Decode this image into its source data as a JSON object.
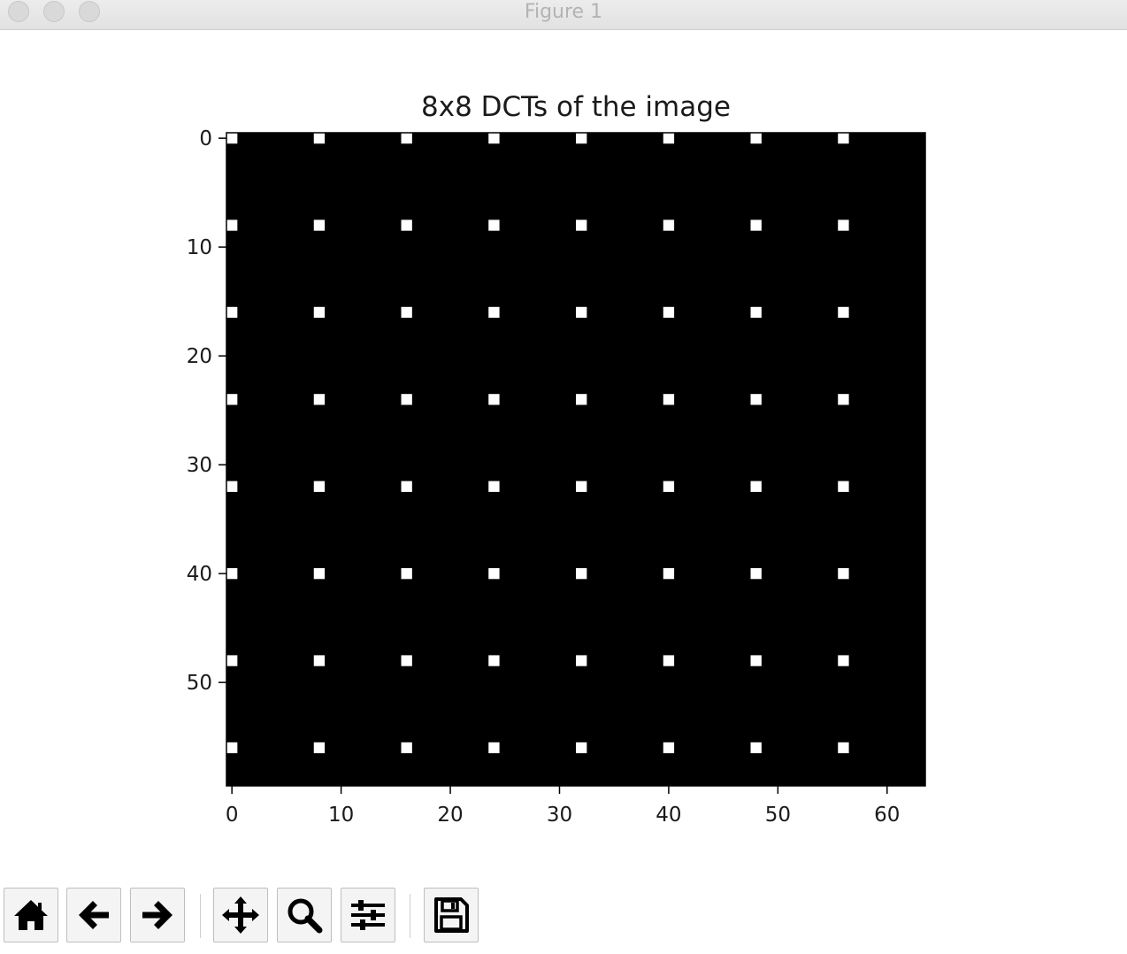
{
  "window": {
    "title": "Figure 1"
  },
  "toolbar": {
    "buttons": [
      {
        "name": "home-icon",
        "label": "home"
      },
      {
        "name": "back-arrow-icon",
        "label": "back"
      },
      {
        "name": "forward-arrow-icon",
        "label": "forward"
      },
      {
        "name": "pan-icon",
        "label": "pan"
      },
      {
        "name": "zoom-icon",
        "label": "zoom"
      },
      {
        "name": "subplots-config-icon",
        "label": "configure subplots"
      },
      {
        "name": "save-icon",
        "label": "save"
      }
    ]
  },
  "chart_data": {
    "type": "heatmap",
    "title": "8x8 DCTs of the image",
    "xlabel": "",
    "ylabel": "",
    "xlim": [
      -0.5,
      63.5
    ],
    "ylim": [
      59.5,
      -0.5
    ],
    "y_inverted": true,
    "colormap": "gray",
    "background_value": 0,
    "x_ticks": [
      0,
      10,
      20,
      30,
      40,
      50,
      60
    ],
    "y_ticks": [
      0,
      10,
      20,
      30,
      40,
      50
    ],
    "bright_pixel_columns": [
      0,
      8,
      16,
      24,
      32,
      40,
      48,
      56
    ],
    "bright_pixel_rows": [
      0,
      8,
      16,
      24,
      32,
      40,
      48,
      56
    ],
    "bright_value": 1,
    "grid": false,
    "legend": "none",
    "colors": {
      "background": "#000000",
      "bright": "#ffffff"
    }
  }
}
